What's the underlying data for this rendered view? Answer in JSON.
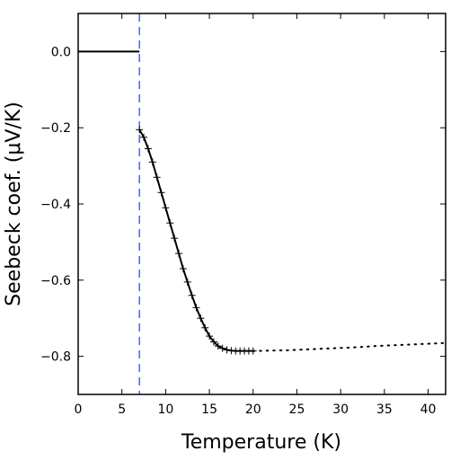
{
  "chart_data": {
    "type": "line",
    "xlabel": "Temperature (K)",
    "ylabel": "Seebeck coef. (μV/K)",
    "xlim": [
      0,
      42
    ],
    "ylim": [
      -0.9,
      0.1
    ],
    "xticks": [
      0,
      5,
      10,
      15,
      20,
      25,
      30,
      35,
      40
    ],
    "yticks": [
      0.0,
      -0.2,
      -0.4,
      -0.6,
      -0.8
    ],
    "ytick_labels": [
      "0.0",
      "−0.2",
      "−0.4",
      "−0.6",
      "−0.8"
    ],
    "grid": false,
    "colors": {
      "series": "#000000",
      "marker": "#000000",
      "threshold": "#1f3fd6"
    },
    "threshold_line": {
      "x": 7.0,
      "style": "dashed"
    },
    "series": [
      {
        "style": "solid",
        "x": [
          0,
          7.0
        ],
        "y": [
          0.0,
          0.0
        ]
      },
      {
        "style": "solid-plus-markers",
        "x": [
          7.0,
          7.5,
          8.0,
          8.5,
          9.0,
          9.5,
          10.0,
          10.5,
          11.0,
          11.5,
          12.0,
          12.5,
          13.0,
          13.5,
          14.0,
          14.5,
          15.0,
          15.5,
          16.0,
          16.5,
          17.0,
          17.5,
          18.0,
          18.5,
          19.0,
          19.5,
          20.0
        ],
        "y": [
          -0.205,
          -0.225,
          -0.255,
          -0.29,
          -0.33,
          -0.37,
          -0.41,
          -0.45,
          -0.49,
          -0.53,
          -0.57,
          -0.605,
          -0.64,
          -0.672,
          -0.7,
          -0.725,
          -0.747,
          -0.762,
          -0.773,
          -0.779,
          -0.783,
          -0.785,
          -0.786,
          -0.786,
          -0.786,
          -0.786,
          -0.786
        ]
      },
      {
        "style": "dotted",
        "x": [
          20,
          22,
          24,
          26,
          28,
          30,
          32,
          34,
          36,
          38,
          40,
          42
        ],
        "y": [
          -0.786,
          -0.785,
          -0.784,
          -0.782,
          -0.78,
          -0.778,
          -0.776,
          -0.773,
          -0.771,
          -0.769,
          -0.767,
          -0.765
        ]
      }
    ]
  }
}
